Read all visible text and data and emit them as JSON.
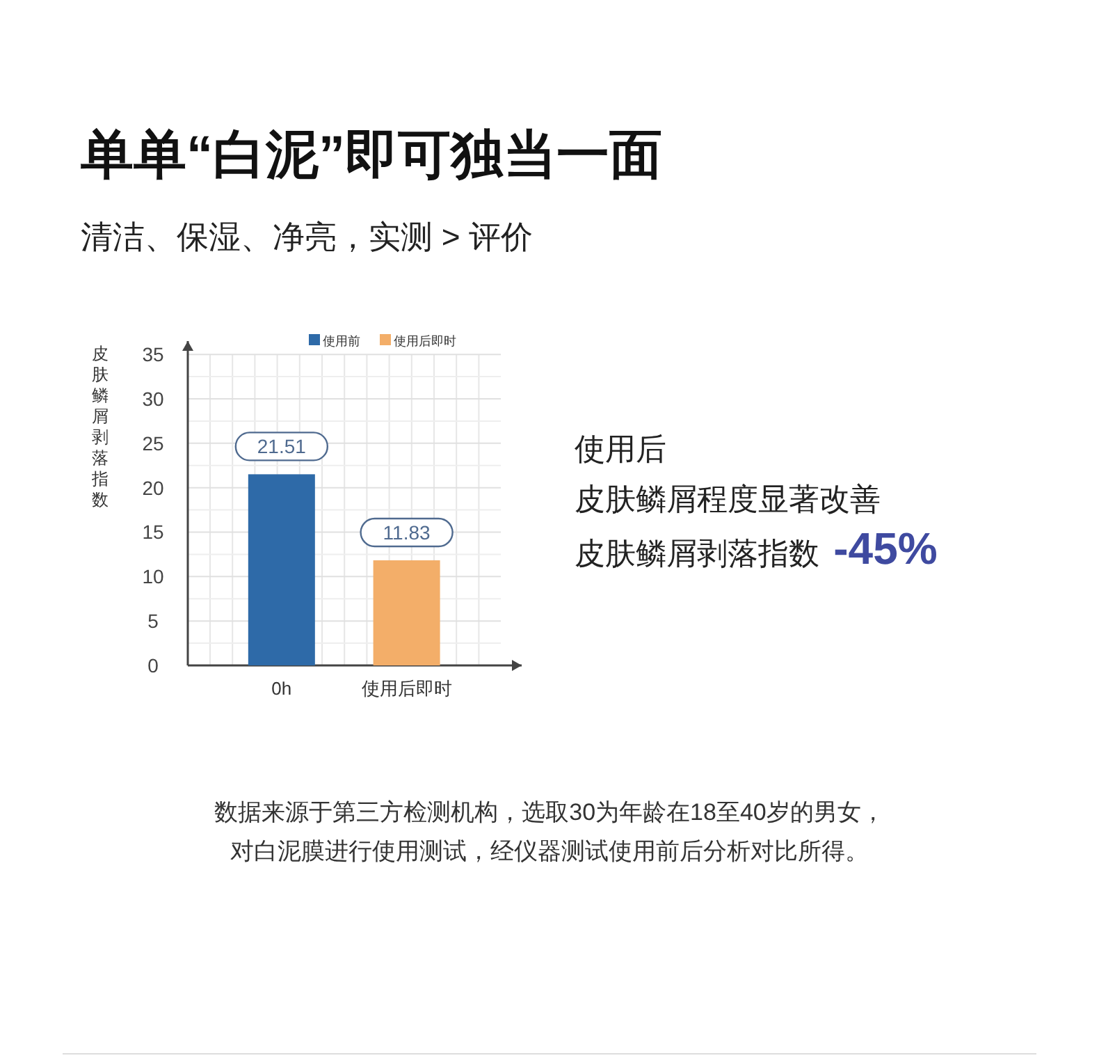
{
  "chart_data": {
    "type": "bar",
    "title": "单单“白泥”即可独当一面",
    "subtitle": "清洁、保湿、净亮，实测 > 评价",
    "ylabel": "皮肤鳞屑剥落指数",
    "categories": [
      "0h",
      "使用后即时"
    ],
    "series": [
      {
        "name": "使用前",
        "color": "#2e6aa8",
        "values": [
          21.51,
          null
        ]
      },
      {
        "name": "使用后即时",
        "color": "#f3ae69",
        "values": [
          null,
          11.83
        ]
      }
    ],
    "ylim": [
      0,
      36.5
    ],
    "yticks": [
      0,
      5,
      10,
      15,
      20,
      25,
      30,
      35
    ],
    "grid": true,
    "legend": "top",
    "data_labels": true,
    "annotations": [
      "使用后",
      "皮肤鳞屑程度显著改善",
      "皮肤鳞屑剥落指数 -45%",
      "数据来源于第三方检测机构，选取30为年龄在18至40岁的男女，",
      "对白泥膜进行使用测试，经仪器测试使用前后分析对比所得。"
    ]
  }
}
